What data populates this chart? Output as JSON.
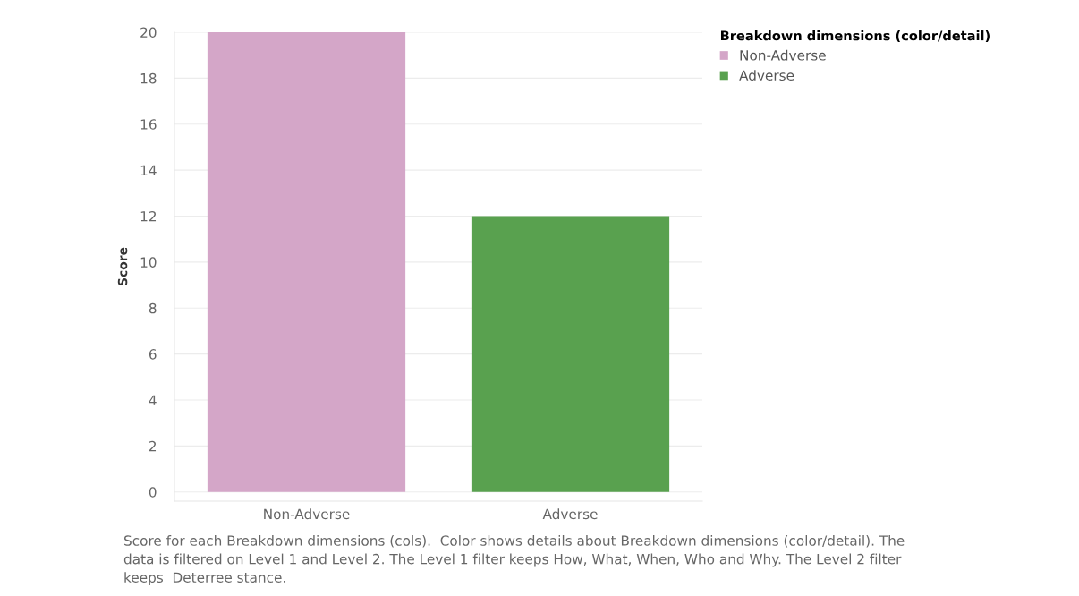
{
  "chart_data": {
    "type": "bar",
    "ylabel": "Score",
    "legend_title": "Breakdown dimensions (color/detail)",
    "categories": [
      "Non-Adverse",
      "Adverse"
    ],
    "series": [
      {
        "name": "Non-Adverse",
        "color": "#d4a6c8",
        "values": [
          20,
          null
        ]
      },
      {
        "name": "Adverse",
        "color": "#59a14f",
        "values": [
          null,
          12
        ]
      }
    ],
    "ylim": [
      -0.4,
      20
    ],
    "yticks": [
      0,
      2,
      4,
      6,
      8,
      10,
      12,
      14,
      16,
      18,
      20
    ],
    "grid": "y",
    "legend": "top right",
    "annotations": [
      "Score for each Breakdown dimensions (cols).  Color shows details about Breakdown dimensions (color/detail). The data is filtered on Level 1 and Level 2. The Level 1 filter keeps How, What, When, Who and Why. The Level 2 filter keeps  Deterree stance."
    ]
  }
}
